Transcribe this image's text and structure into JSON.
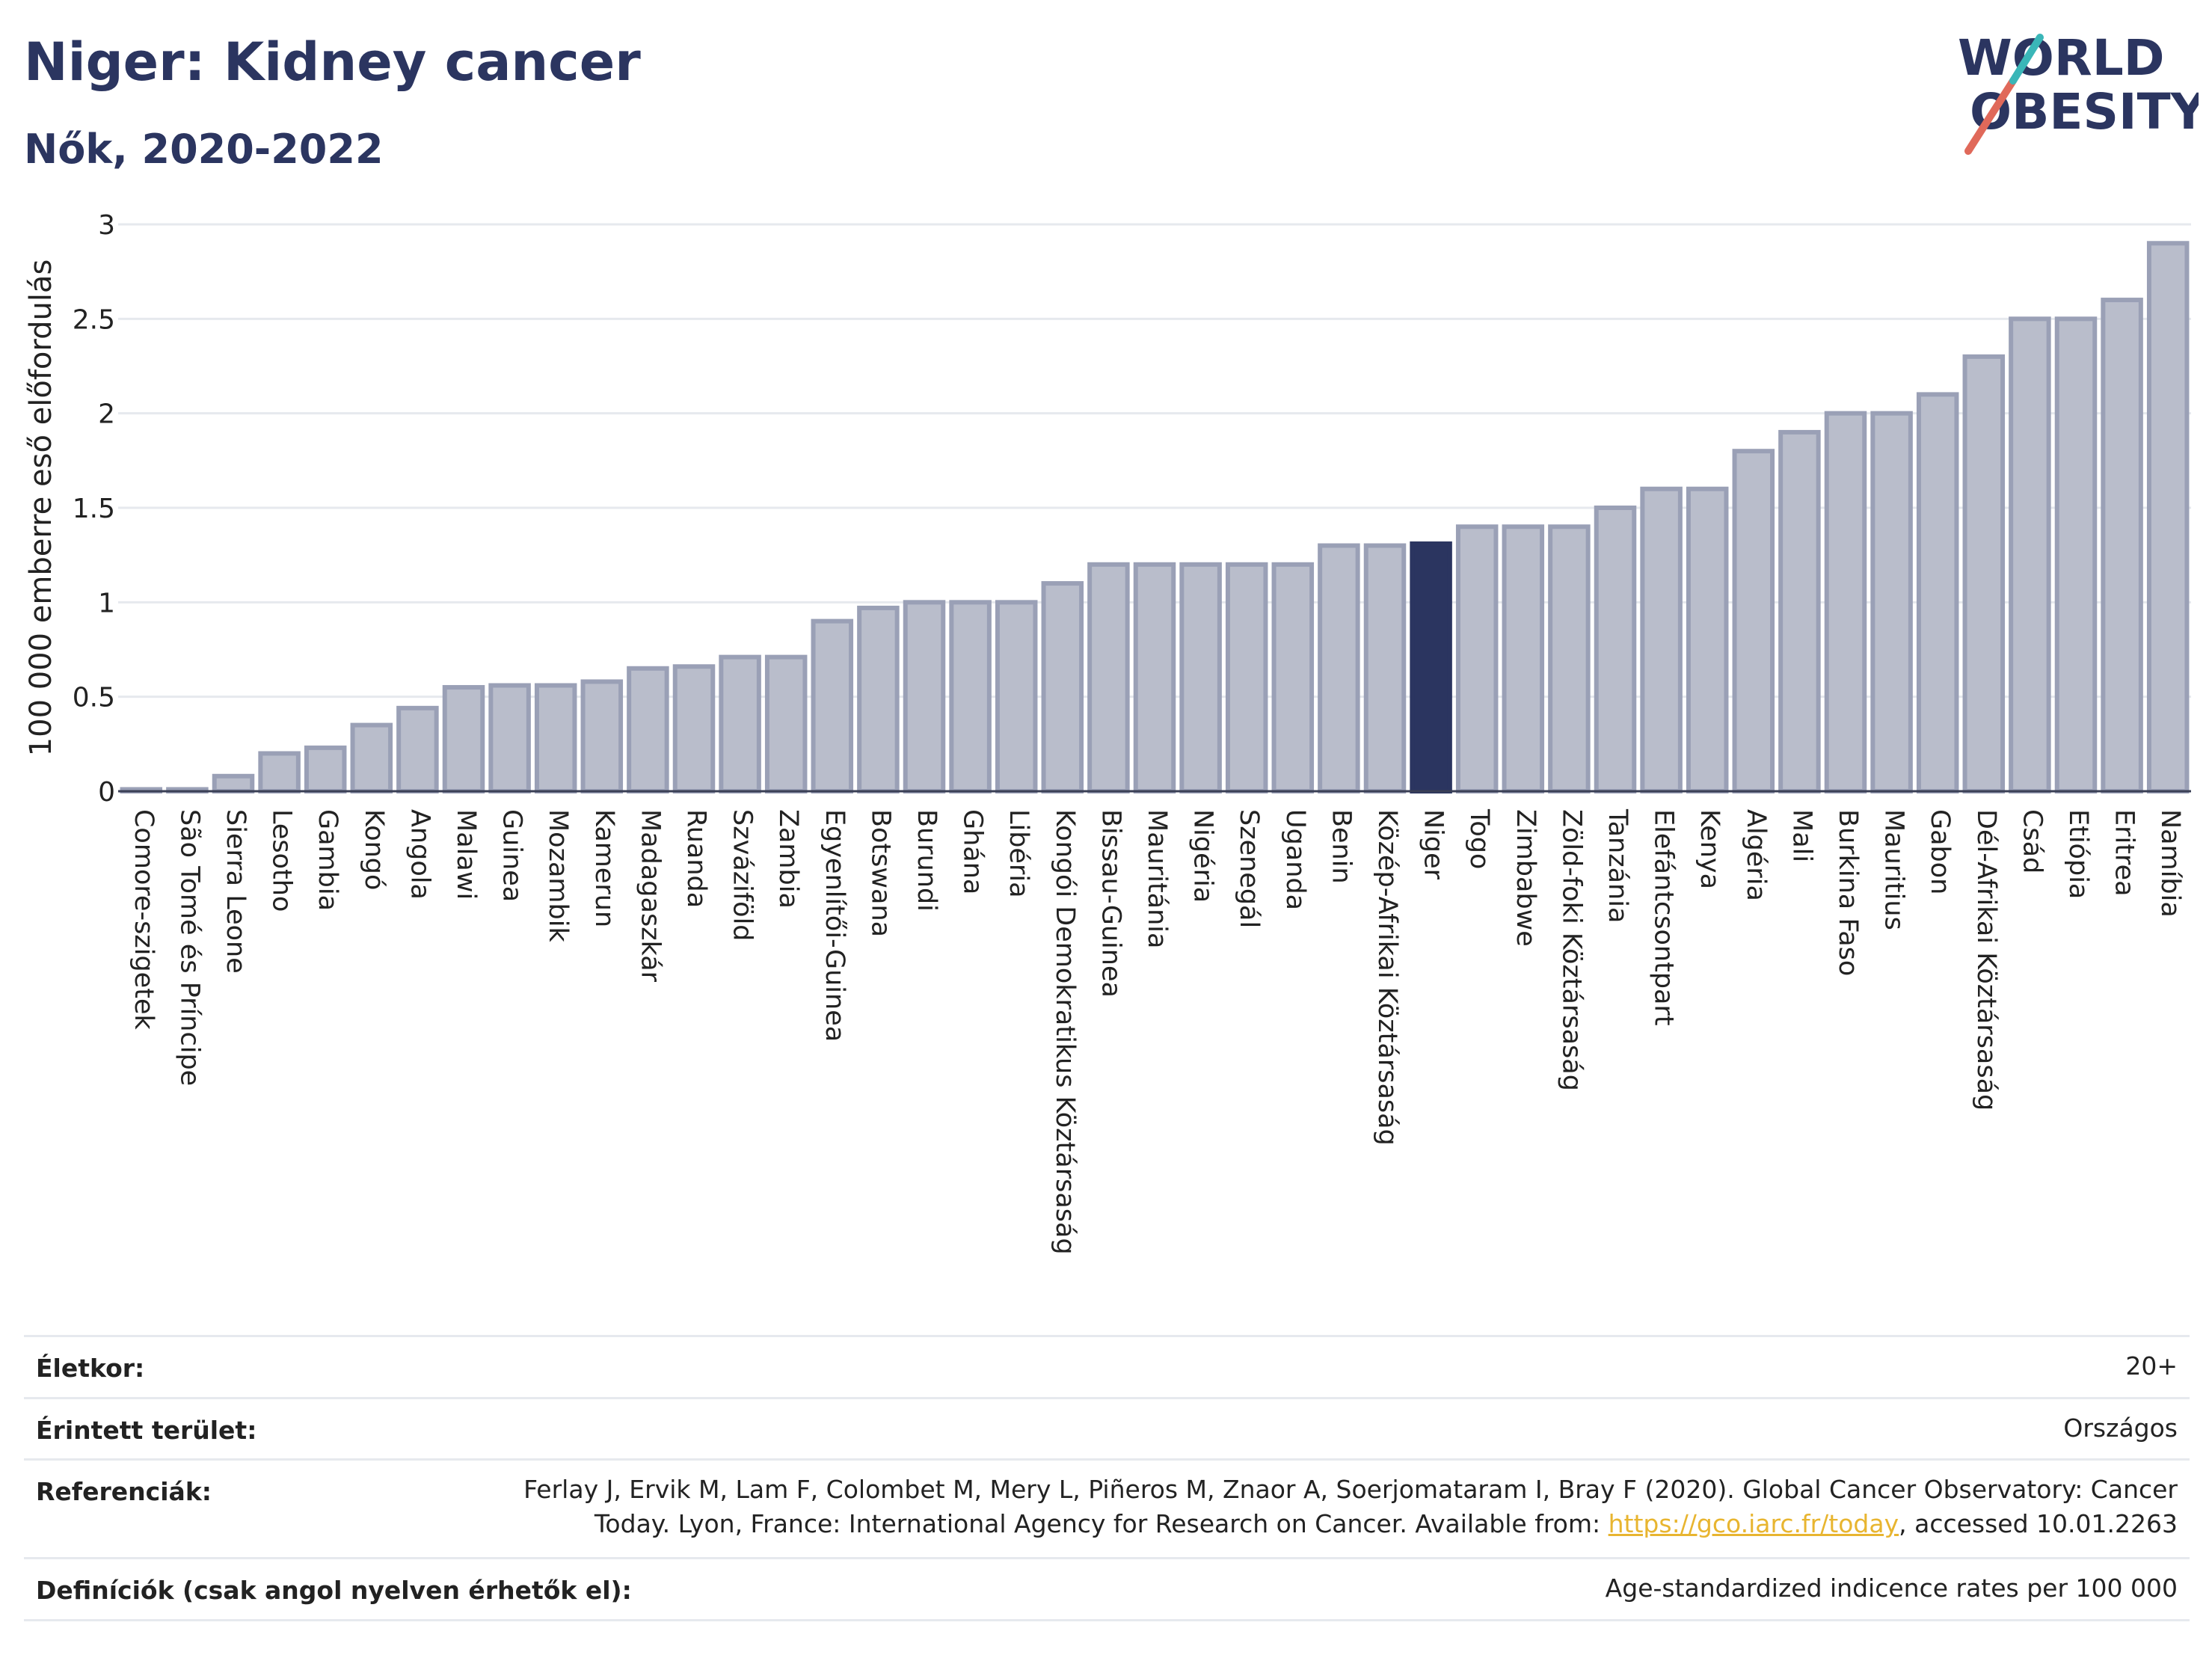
{
  "header": {
    "title": "Niger: Kidney cancer",
    "subtitle": "Nők, 2020-2022"
  },
  "logo": {
    "line1": "WORLD",
    "line2": "OBESITY",
    "colors": {
      "text": "#2b3560",
      "slash_red": "#e0695a",
      "slash_teal": "#3ab6b8"
    }
  },
  "chart_data": {
    "type": "bar",
    "ylabel": "100 000 emberre eső előfordulás",
    "ylim": [
      0,
      3
    ],
    "yticks": [
      0,
      0.5,
      1,
      1.5,
      2,
      2.5,
      3
    ],
    "grid": true,
    "highlight": "Niger",
    "colors": {
      "bar": "#b9bdcb",
      "bar_stroke": "#9aa0b6",
      "highlight": "#2b3560",
      "grid": "#e6e9ee"
    },
    "categories": [
      "Comore-szigetek",
      "São Tomé és Príncipe",
      "Sierra Leone",
      "Lesotho",
      "Gambia",
      "Kongó",
      "Angola",
      "Malawi",
      "Guinea",
      "Mozambik",
      "Kamerun",
      "Madagaszkár",
      "Ruanda",
      "Szváziföld",
      "Zambia",
      "Egyenlítői-Guinea",
      "Botswana",
      "Burundi",
      "Ghána",
      "Libéria",
      "Kongói Demokratikus Köztársaság",
      "Bissau-Guinea",
      "Mauritánia",
      "Nigéria",
      "Szenegál",
      "Uganda",
      "Benin",
      "Közép-Afrikai Köztársaság",
      "Niger",
      "Togo",
      "Zimbabwe",
      "Zöld-foki Köztársaság",
      "Tanzánia",
      "Elefántcsontpart",
      "Kenya",
      "Algéria",
      "Mali",
      "Burkina Faso",
      "Mauritius",
      "Gabon",
      "Dél-Afrikai Köztársaság",
      "Csád",
      "Etiópia",
      "Eritrea",
      "Namíbia"
    ],
    "values": [
      0.01,
      0.01,
      0.08,
      0.2,
      0.23,
      0.35,
      0.44,
      0.55,
      0.56,
      0.56,
      0.58,
      0.65,
      0.66,
      0.71,
      0.71,
      0.9,
      0.97,
      1.0,
      1.0,
      1.0,
      1.1,
      1.2,
      1.2,
      1.2,
      1.2,
      1.2,
      1.3,
      1.3,
      1.31,
      1.4,
      1.4,
      1.4,
      1.5,
      1.6,
      1.6,
      1.8,
      1.9,
      2.0,
      2.0,
      2.1,
      2.3,
      2.5,
      2.5,
      2.6,
      2.9
    ]
  },
  "info": {
    "age_label": "Életkor:",
    "age_value": "20+",
    "area_label": "Érintett terület:",
    "area_value": "Országos",
    "ref_label": "Referenciák:",
    "ref_line1": "Ferlay J, Ervik M, Lam F, Colombet M, Mery L, Piñeros M, Znaor A, Soerjomataram I, Bray F (2020). Global Cancer Observatory: Cancer",
    "ref_line2_pre": "Today. Lyon, France: International Agency for Research on Cancer. Available from: ",
    "ref_link": "https://gco.iarc.fr/today",
    "ref_line2_post": ", accessed 10.01.2263",
    "def_label": "Definíciók (csak angol nyelven érhetők el):",
    "def_value": "Age-standardized indicence rates per 100 000"
  }
}
